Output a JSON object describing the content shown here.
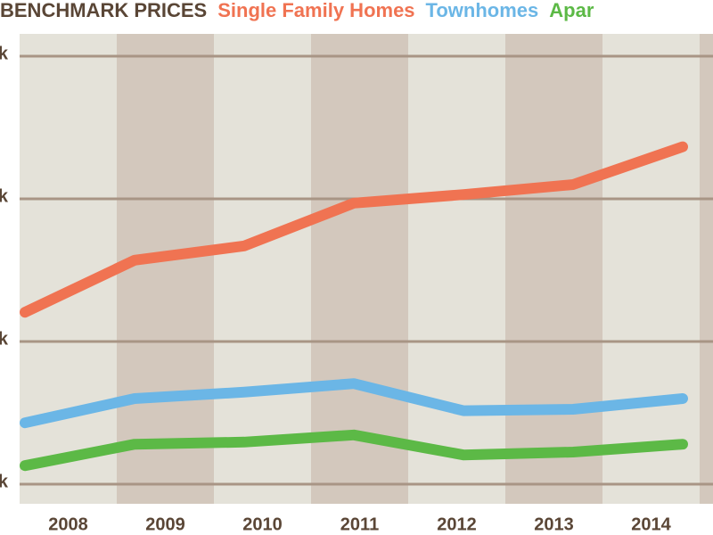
{
  "chart_data": {
    "type": "line",
    "title": "BENCHMARK PRICES",
    "categories": [
      "2008",
      "2009",
      "2010",
      "2011",
      "2012",
      "2013",
      "2014"
    ],
    "series": [
      {
        "name": "Single Family Homes",
        "color": "#f07352",
        "values": [
          641,
          714,
          734,
          794,
          806,
          820,
          873
        ]
      },
      {
        "name": "Townhomes",
        "color": "#6bb6e6",
        "values": [
          486,
          520,
          529,
          541,
          503,
          505,
          520
        ]
      },
      {
        "name": "Apar",
        "color": "#5cb946",
        "values": [
          426,
          456,
          459,
          469,
          441,
          445,
          456
        ]
      }
    ],
    "ylim": [
      350,
      1060
    ],
    "yticks": [
      {
        "value": 400,
        "label": "k"
      },
      {
        "value": 600,
        "label": "k"
      },
      {
        "value": 800,
        "label": "k"
      },
      {
        "value": 1000,
        "label": "k"
      }
    ],
    "grid": true
  }
}
